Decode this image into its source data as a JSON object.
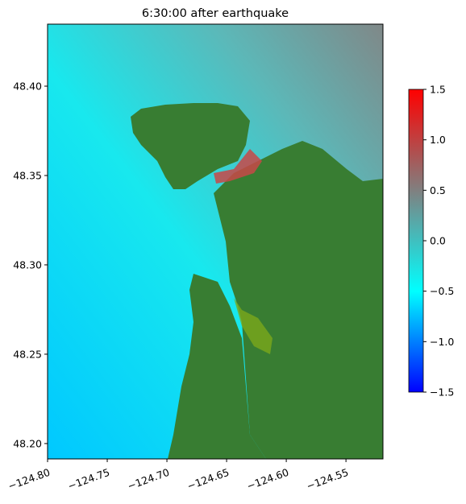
{
  "chart_data": {
    "type": "map",
    "title": "6:30:00 after earthquake",
    "xlim": [
      -124.8,
      -124.519
    ],
    "ylim": [
      48.1914,
      48.4347
    ],
    "xticks": [
      {
        "value": -124.8,
        "label": "−124.80"
      },
      {
        "value": -124.75,
        "label": "−124.75"
      },
      {
        "value": -124.7,
        "label": "−124.70"
      },
      {
        "value": -124.65,
        "label": "−124.65"
      },
      {
        "value": -124.6,
        "label": "−124.60"
      },
      {
        "value": -124.55,
        "label": "−124.55"
      }
    ],
    "yticks": [
      {
        "value": 48.2,
        "label": "48.20"
      },
      48.25,
      {
        "value": 48.3,
        "label": "48.30"
      },
      48.35,
      {
        "value": 48.4,
        "label": "48.40"
      }
    ],
    "colorbar": {
      "lim": [
        -1.5,
        1.5
      ],
      "ticks": [
        {
          "value": -1.5,
          "label": "−1.5"
        },
        {
          "value": -1.0,
          "label": "−1.0"
        },
        {
          "value": -0.5,
          "label": "−0.5"
        },
        {
          "value": 0.0,
          "label": "0.0"
        },
        0.5,
        {
          "value": 1.0,
          "label": "1.0"
        },
        1.5
      ],
      "colors": [
        "#0000ff",
        "#00ffff",
        "#808080",
        "#ff0000"
      ]
    },
    "land_color": "#387d32"
  }
}
